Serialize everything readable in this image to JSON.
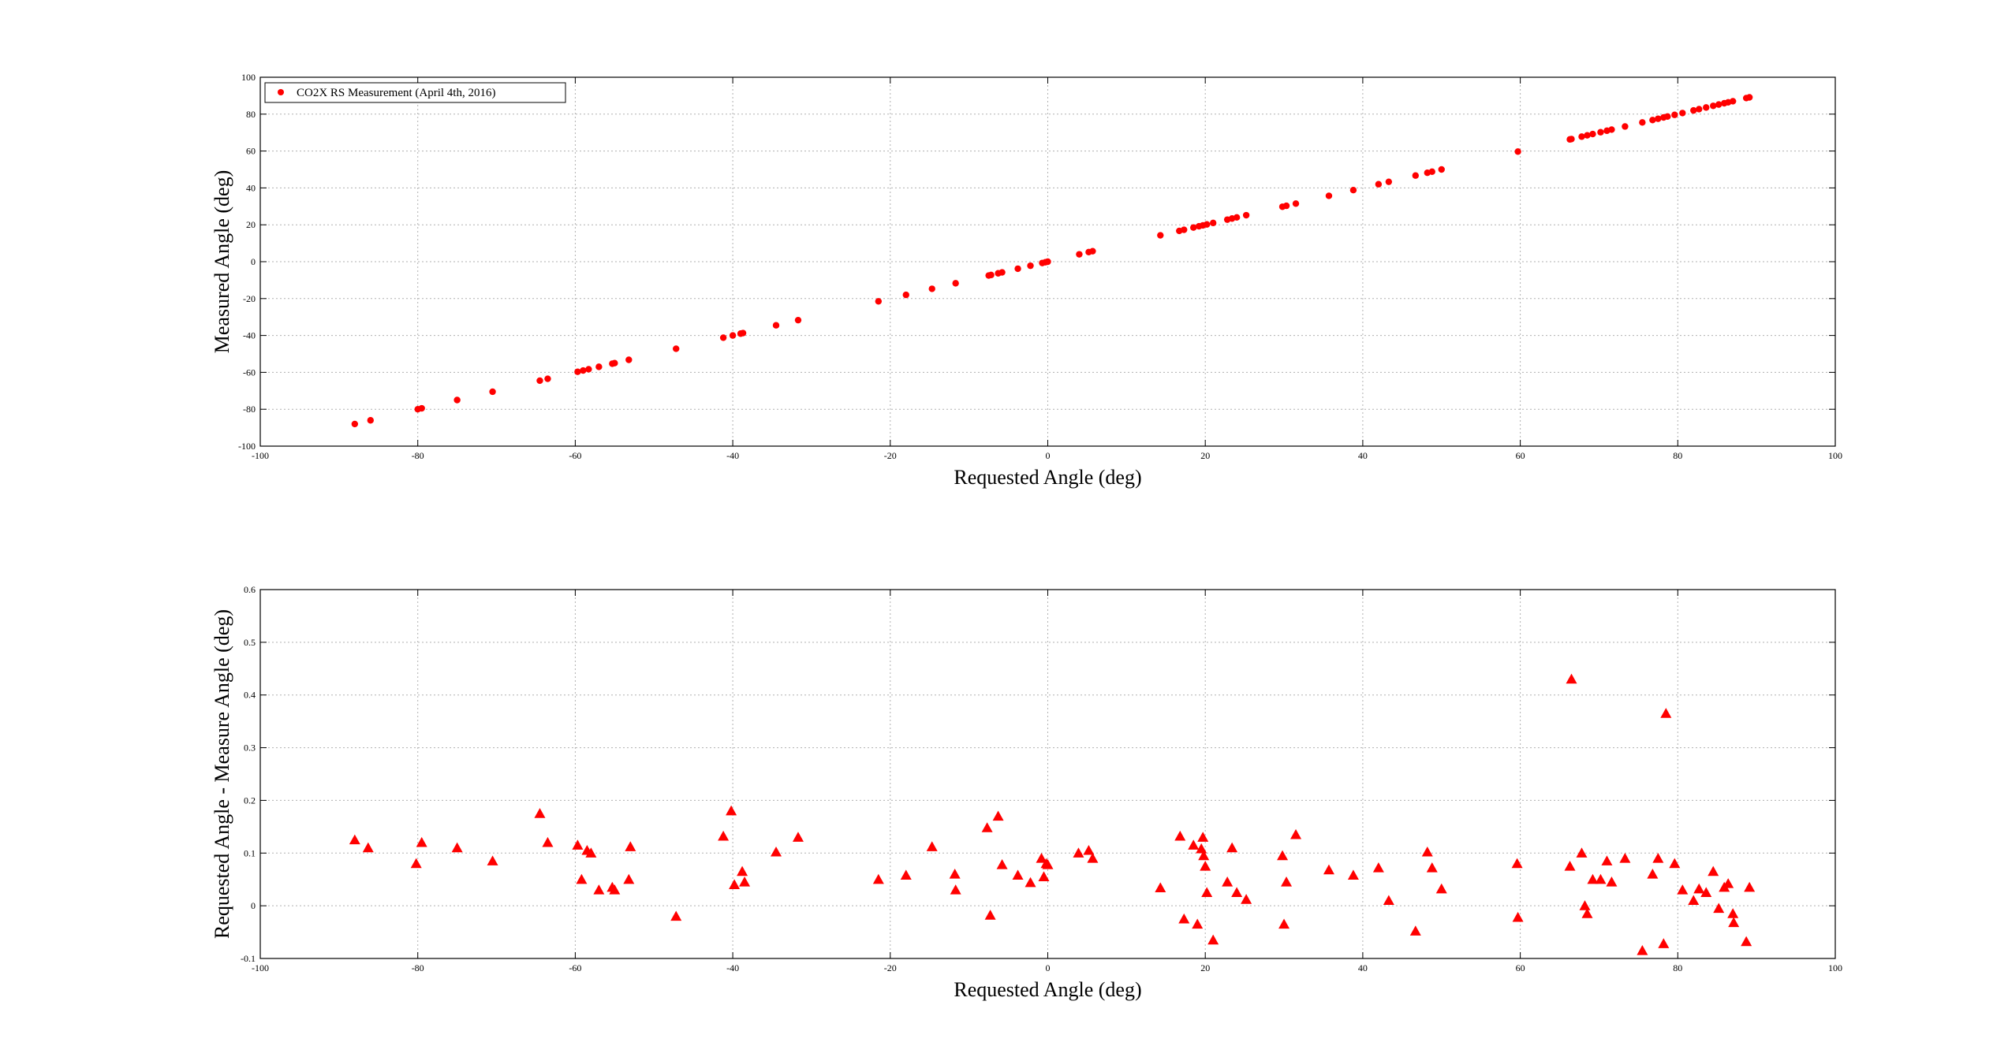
{
  "chart_data": [
    {
      "type": "scatter",
      "title": "",
      "xlabel": "Requested Angle (deg)",
      "ylabel": "Measured Angle (deg)",
      "xlim": [
        -100,
        100
      ],
      "ylim": [
        -100,
        100
      ],
      "xticks": [
        -100,
        -80,
        -60,
        -40,
        -20,
        0,
        20,
        40,
        60,
        80,
        100
      ],
      "yticks": [
        -100,
        -80,
        -60,
        -40,
        -20,
        0,
        20,
        40,
        60,
        80,
        100
      ],
      "grid": true,
      "legend": {
        "placement": "top-left",
        "entries": [
          "CO2X RS Measurement (April 4th, 2016)"
        ]
      },
      "series": [
        {
          "name": "CO2X RS Measurement (April 4th, 2016)",
          "color": "#ff0000",
          "marker": "circle",
          "x": [
            -88,
            -86,
            -80,
            -79.5,
            -75,
            -70.5,
            -64.5,
            -63.5,
            -59.7,
            -59,
            -58.3,
            -57,
            -55.3,
            -55,
            -53.2,
            -47.2,
            -41.2,
            -40,
            -39,
            -38.7,
            -34.5,
            -31.7,
            -21.5,
            -18,
            -14.7,
            -11.7,
            -7.5,
            -7.2,
            -6.3,
            -5.8,
            -3.8,
            -2.2,
            -0.7,
            -0.3,
            0,
            4,
            5.2,
            5.7,
            14.3,
            16.7,
            17.3,
            18.5,
            19.2,
            19.7,
            20.2,
            21,
            22.8,
            23.4,
            24,
            25.2,
            29.8,
            30.3,
            31.5,
            35.7,
            38.8,
            42,
            43.3,
            46.7,
            48.2,
            48.8,
            50,
            59.7,
            66.3,
            66.5,
            67.8,
            68.5,
            69.2,
            70.2,
            71,
            71.6,
            73.3,
            75.5,
            76.8,
            77.5,
            78.2,
            78.7,
            79.6,
            80.6,
            82,
            82.7,
            83.6,
            84.5,
            85.2,
            85.9,
            86.4,
            87,
            88.7,
            89.1
          ],
          "y": [
            -88,
            -86,
            -80,
            -79.5,
            -75,
            -70.5,
            -64.5,
            -63.5,
            -59.7,
            -59,
            -58.3,
            -57,
            -55.3,
            -55,
            -53.2,
            -47.2,
            -41.2,
            -40,
            -39,
            -38.7,
            -34.5,
            -31.7,
            -21.5,
            -18,
            -14.7,
            -11.7,
            -7.5,
            -7.2,
            -6.3,
            -5.8,
            -3.8,
            -2.2,
            -0.7,
            -0.3,
            0,
            4,
            5.2,
            5.7,
            14.3,
            16.7,
            17.3,
            18.5,
            19.2,
            19.7,
            20.2,
            21,
            22.8,
            23.4,
            24,
            25.2,
            29.8,
            30.3,
            31.5,
            35.7,
            38.8,
            42,
            43.3,
            46.7,
            48.2,
            48.8,
            50,
            59.7,
            66.3,
            66.5,
            67.8,
            68.5,
            69.2,
            70.2,
            71,
            71.6,
            73.3,
            75.5,
            76.8,
            77.5,
            78.2,
            78.7,
            79.6,
            80.6,
            82,
            82.7,
            83.6,
            84.5,
            85.2,
            85.9,
            86.4,
            87,
            88.7,
            89.1
          ]
        }
      ]
    },
    {
      "type": "scatter",
      "title": "",
      "xlabel": "Requested Angle (deg)",
      "ylabel": "Requested Angle - Measure Angle (deg)",
      "xlim": [
        -100,
        100
      ],
      "ylim": [
        -0.1,
        0.6
      ],
      "xticks": [
        -100,
        -80,
        -60,
        -40,
        -20,
        0,
        20,
        40,
        60,
        80,
        100
      ],
      "yticks": [
        -0.1,
        0,
        0.1,
        0.2,
        0.3,
        0.4,
        0.5,
        0.6
      ],
      "grid": true,
      "series": [
        {
          "color": "#ff0000",
          "marker": "triangle",
          "x": [
            -88,
            -86.3,
            -80.2,
            -79.5,
            -75,
            -70.5,
            -64.5,
            -63.5,
            -59.7,
            -59.2,
            -58.5,
            -58,
            -57,
            -55.3,
            -55,
            -53.2,
            -53,
            -47.2,
            -41.2,
            -40.2,
            -39.8,
            -38.8,
            -38.5,
            -34.5,
            -31.7,
            -21.5,
            -18,
            -14.7,
            -11.8,
            -11.7,
            -7.7,
            -7.3,
            -6.3,
            -5.8,
            -3.8,
            -2.2,
            -0.8,
            -0.5,
            -0.2,
            0,
            3.9,
            5.2,
            5.7,
            14.3,
            16.8,
            17.3,
            18.5,
            19,
            19.5,
            19.7,
            19.8,
            20,
            20.2,
            21,
            22.8,
            23.4,
            24,
            25.2,
            29.8,
            30,
            30.3,
            31.5,
            35.7,
            38.8,
            42,
            43.3,
            46.7,
            48.2,
            48.8,
            50,
            59.6,
            59.7,
            66.3,
            66.5,
            67.8,
            68.2,
            68.5,
            69.2,
            70.2,
            71,
            71.6,
            73.3,
            75.5,
            76.8,
            77.5,
            78.2,
            78.5,
            79.6,
            80.6,
            82,
            82.7,
            83.6,
            84.5,
            85.2,
            85.9,
            86.4,
            87,
            87.1,
            88.7,
            89.1
          ],
          "y": [
            0.125,
            0.11,
            0.08,
            0.12,
            0.11,
            0.085,
            0.175,
            0.12,
            0.115,
            0.05,
            0.105,
            0.1,
            0.03,
            0.035,
            0.03,
            0.05,
            0.112,
            -0.02,
            0.132,
            0.18,
            0.04,
            0.065,
            0.045,
            0.102,
            0.13,
            0.05,
            0.058,
            0.112,
            0.06,
            0.03,
            0.148,
            -0.018,
            0.17,
            0.078,
            0.058,
            0.044,
            0.09,
            0.055,
            0.08,
            0.078,
            0.1,
            0.105,
            0.09,
            0.034,
            0.132,
            -0.025,
            0.115,
            -0.035,
            0.108,
            0.13,
            0.095,
            0.075,
            0.025,
            -0.065,
            0.045,
            0.11,
            0.025,
            0.012,
            0.095,
            -0.035,
            0.045,
            0.135,
            0.068,
            0.058,
            0.072,
            0.01,
            -0.048,
            0.102,
            0.072,
            0.032,
            0.08,
            -0.022,
            0.075,
            0.43,
            0.1,
            0,
            -0.015,
            0.05,
            0.05,
            0.085,
            0.045,
            0.09,
            -0.085,
            0.06,
            0.09,
            -0.072,
            0.365,
            0.08,
            0.03,
            0.01,
            0.032,
            0.025,
            0.065,
            -0.005,
            0.035,
            0.042,
            -0.015,
            -0.032,
            -0.068,
            0.035
          ]
        }
      ]
    }
  ]
}
